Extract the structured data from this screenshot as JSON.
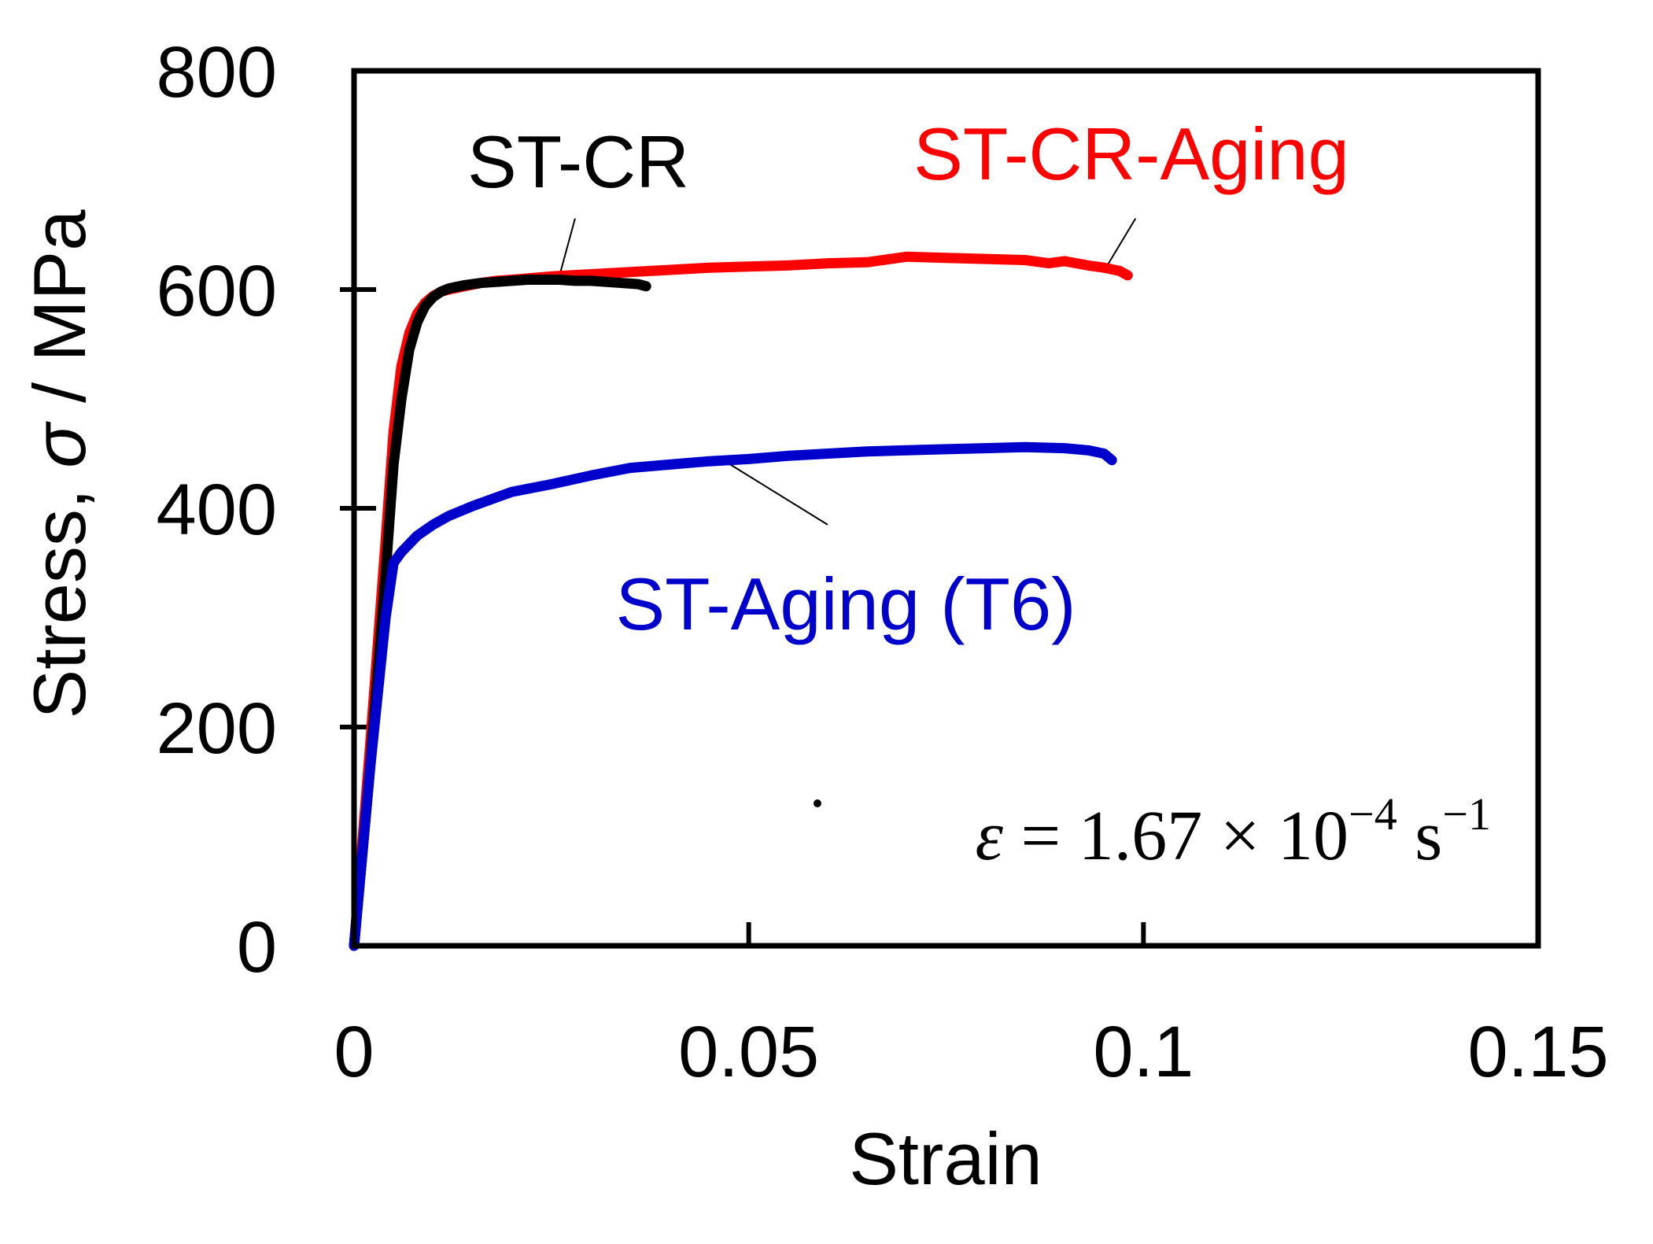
{
  "chart_data": {
    "type": "line",
    "xlabel": "Strain",
    "ylabel_prefix": "Stress, ",
    "ylabel_symbol": "σ",
    "ylabel_suffix": " / MPa",
    "xlim": [
      0,
      0.15
    ],
    "ylim": [
      0,
      800
    ],
    "xticks": [
      0,
      0.05,
      0.1,
      0.15
    ],
    "xtick_labels": [
      "0",
      "0.05",
      "0.1",
      "0.15"
    ],
    "yticks": [
      0,
      200,
      400,
      600,
      800
    ],
    "ytick_labels": [
      "0",
      "200",
      "400",
      "600",
      "800"
    ],
    "grid": false,
    "legend": "none",
    "annotation": {
      "eps": "ε",
      "mid": " = 1.67 × 10",
      "exp1": "−4",
      "unit": " s",
      "exp2": "−1"
    },
    "series": [
      {
        "name": "ST-CR-Aging",
        "color": "#ff0000",
        "x": [
          0,
          0.002,
          0.004,
          0.005,
          0.006,
          0.007,
          0.008,
          0.009,
          0.01,
          0.011,
          0.012,
          0.014,
          0.016,
          0.018,
          0.02,
          0.025,
          0.03,
          0.035,
          0.04,
          0.045,
          0.05,
          0.055,
          0.06,
          0.065,
          0.07,
          0.075,
          0.08,
          0.085,
          0.088,
          0.09,
          0.093,
          0.095,
          0.097,
          0.098
        ],
        "y": [
          0,
          180,
          370,
          470,
          530,
          560,
          578,
          588,
          594,
          598,
          600,
          603,
          606,
          608,
          609,
          612,
          614,
          616,
          618,
          620,
          621,
          622,
          624,
          625,
          630,
          629,
          628,
          627,
          624,
          626,
          622,
          620,
          617,
          613
        ]
      },
      {
        "name": "ST-CR",
        "color": "#000000",
        "x": [
          0,
          0.002,
          0.004,
          0.005,
          0.006,
          0.007,
          0.008,
          0.009,
          0.01,
          0.011,
          0.012,
          0.014,
          0.016,
          0.018,
          0.02,
          0.022,
          0.024,
          0.026,
          0.028,
          0.03,
          0.032,
          0.034,
          0.036,
          0.037
        ],
        "y": [
          0,
          160,
          340,
          440,
          500,
          545,
          570,
          585,
          593,
          598,
          601,
          604,
          606,
          607,
          608,
          609,
          609,
          609,
          608,
          608,
          607,
          606,
          605,
          603
        ]
      },
      {
        "name": "ST-Aging (T6)",
        "color": "#0000cc",
        "x": [
          0,
          0.002,
          0.004,
          0.005,
          0.006,
          0.008,
          0.01,
          0.012,
          0.015,
          0.02,
          0.025,
          0.03,
          0.035,
          0.04,
          0.045,
          0.05,
          0.055,
          0.06,
          0.065,
          0.07,
          0.075,
          0.08,
          0.085,
          0.09,
          0.093,
          0.095,
          0.096
        ],
        "y": [
          0,
          160,
          300,
          350,
          360,
          375,
          385,
          393,
          402,
          415,
          422,
          430,
          437,
          440,
          443,
          445,
          448,
          450,
          452,
          453,
          454,
          455,
          456,
          455,
          453,
          450,
          444
        ]
      }
    ],
    "series_labels": [
      {
        "text": "ST-CR",
        "color": "#000000",
        "anchor": [
          0.026,
          612
        ],
        "label_at": [
          0.028,
          665
        ]
      },
      {
        "text": "ST-CR-Aging",
        "color": "#ff0000",
        "anchor": [
          0.095,
          617
        ],
        "label_at": [
          0.099,
          665
        ]
      },
      {
        "text": "ST-Aging (T6)",
        "color": "#0000cc",
        "anchor": [
          0.047,
          443
        ],
        "label_at": [
          0.06,
          385
        ]
      }
    ]
  }
}
